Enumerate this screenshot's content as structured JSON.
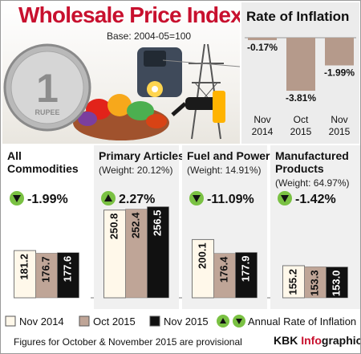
{
  "header": {
    "title": "Wholesale Price Index",
    "base": "Base: 2004-05=100",
    "footnote": "Figures for October & November 2015 are provisional",
    "credit_prefix": "KBK ",
    "credit_brand": "Info",
    "credit_suffix": "graphics"
  },
  "coin": {
    "denomination": "1",
    "legend": "RUPEE"
  },
  "colors": {
    "nov2014": "#fff8ea",
    "oct2015": "#bfa597",
    "nov2015": "#111111",
    "accent": "#c8102e",
    "arrow_up": "#7ac143",
    "arrow_down": "#7ac143",
    "panel_bg": "#f0f0f0",
    "inflation_bg": "#ececec"
  },
  "legend": {
    "items": [
      "Nov 2014",
      "Oct 2015",
      "Nov 2015"
    ],
    "arrow_label": "Annual Rate of Inflation"
  },
  "chart_data": [
    {
      "type": "bar",
      "title": "Rate of Inflation",
      "categories": [
        "Nov 2014",
        "Oct 2015",
        "Nov 2015"
      ],
      "category_lines": [
        [
          "Nov",
          "2014"
        ],
        [
          "Oct",
          "2015"
        ],
        [
          "Nov",
          "2015"
        ]
      ],
      "values": [
        -0.17,
        -3.81,
        -1.99
      ],
      "labels": [
        "-0.17%",
        "-3.81%",
        "-1.99%"
      ],
      "ylim": [
        -4.5,
        0
      ]
    },
    {
      "type": "bar",
      "axis_min_label": "100",
      "ylim": [
        100,
        260
      ],
      "categories": [
        "Nov 2014",
        "Oct 2015",
        "Nov 2015"
      ],
      "panels": [
        {
          "title_lines": [
            "All",
            "Commodities"
          ],
          "weight": "",
          "inflation": "-1.99%",
          "direction": "down",
          "values": [
            181.2,
            176.7,
            177.6
          ],
          "labels": [
            "181.2",
            "176.7",
            "177.6"
          ]
        },
        {
          "title_lines": [
            "Primary Articles"
          ],
          "weight": "(Weight: 20.12%)",
          "inflation": "2.27%",
          "direction": "up",
          "values": [
            250.8,
            252.4,
            256.5
          ],
          "labels": [
            "250.8",
            "252.4",
            "256.5"
          ]
        },
        {
          "title_lines": [
            "Fuel and Power"
          ],
          "weight": "(Weight: 14.91%)",
          "inflation": "-11.09%",
          "direction": "down",
          "values": [
            200.1,
            176.4,
            177.9
          ],
          "labels": [
            "200.1",
            "176.4",
            "177.9"
          ]
        },
        {
          "title_lines": [
            "Manufactured",
            "Products"
          ],
          "weight": "(Weight: 64.97%)",
          "inflation": "-1.42%",
          "direction": "down",
          "values": [
            155.2,
            153.3,
            153.0
          ],
          "labels": [
            "155.2",
            "153.3",
            "153.0"
          ]
        }
      ]
    }
  ]
}
